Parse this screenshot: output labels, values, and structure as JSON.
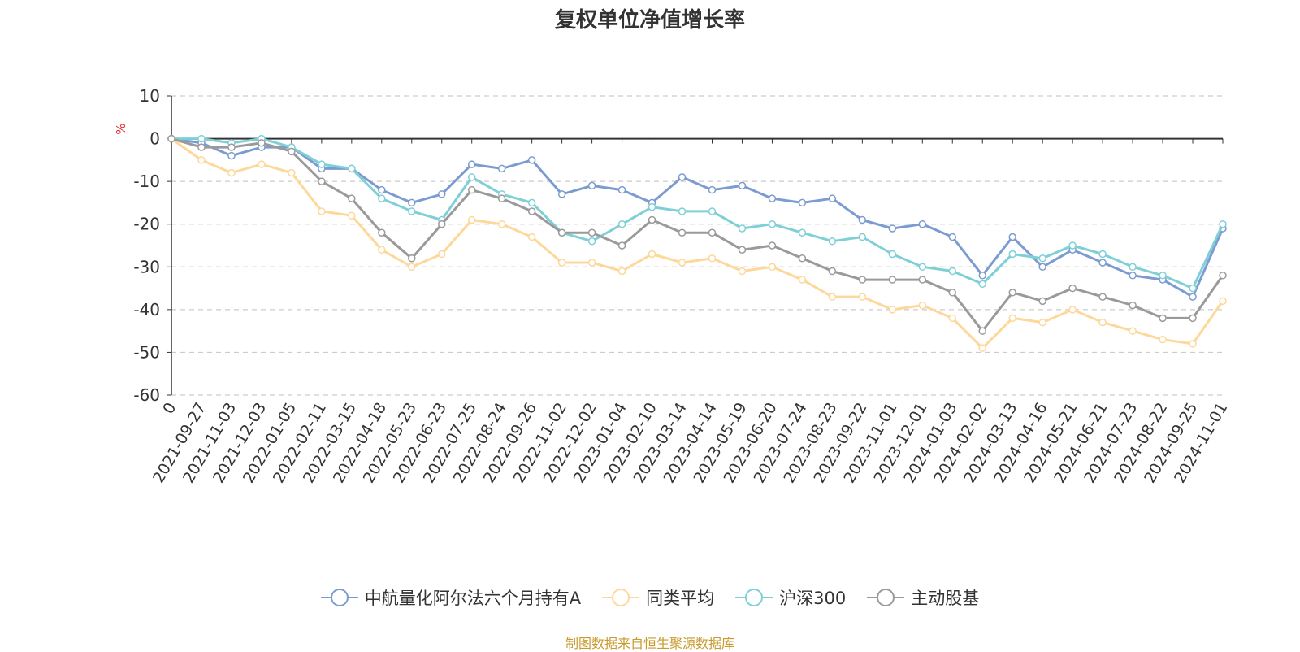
{
  "chart_data": {
    "type": "line",
    "title": "复权单位净值增长率",
    "ylabel": "%",
    "xlabel": "",
    "ylim": [
      -60,
      10
    ],
    "yticks": [
      10,
      0,
      -10,
      -20,
      -30,
      -40,
      -50,
      -60
    ],
    "categories": [
      "0",
      "2021-09-27",
      "2021-11-03",
      "2021-12-03",
      "2022-01-05",
      "2022-02-11",
      "2022-03-15",
      "2022-04-18",
      "2022-05-23",
      "2022-06-23",
      "2022-07-25",
      "2022-08-24",
      "2022-09-26",
      "2022-11-02",
      "2022-12-02",
      "2023-01-04",
      "2023-02-10",
      "2023-03-14",
      "2023-04-14",
      "2023-05-19",
      "2023-06-20",
      "2023-07-24",
      "2023-08-23",
      "2023-09-22",
      "2023-11-01",
      "2023-12-01",
      "2024-01-03",
      "2024-02-02",
      "2024-03-13",
      "2024-04-16",
      "2024-05-21",
      "2024-06-21",
      "2024-07-23",
      "2024-08-22",
      "2024-09-25",
      "2024-11-01"
    ],
    "series": [
      {
        "name": "中航量化阿尔法六个月持有A",
        "color": "#7b9bd1",
        "values": [
          0,
          -1,
          -4,
          -2,
          -2,
          -7,
          -7,
          -12,
          -15,
          -13,
          -6,
          -7,
          -5,
          -13,
          -11,
          -12,
          -15,
          -9,
          -12,
          -11,
          -14,
          -15,
          -14,
          -19,
          -21,
          -20,
          -23,
          -32,
          -23,
          -30,
          -26,
          -29,
          -32,
          -33,
          -37,
          -21
        ]
      },
      {
        "name": "同类平均",
        "color": "#fdd89a",
        "values": [
          0,
          -5,
          -8,
          -6,
          -8,
          -17,
          -18,
          -26,
          -30,
          -27,
          -19,
          -20,
          -23,
          -29,
          -29,
          -31,
          -27,
          -29,
          -28,
          -31,
          -30,
          -33,
          -37,
          -37,
          -40,
          -39,
          -42,
          -49,
          -42,
          -43,
          -40,
          -43,
          -45,
          -47,
          -48,
          -38
        ]
      },
      {
        "name": "沪深300",
        "color": "#7fd0d6",
        "values": [
          0,
          0,
          -1,
          0,
          -2,
          -6,
          -7,
          -14,
          -17,
          -19,
          -9,
          -13,
          -15,
          -22,
          -24,
          -20,
          -16,
          -17,
          -17,
          -21,
          -20,
          -22,
          -24,
          -23,
          -27,
          -30,
          -31,
          -34,
          -27,
          -28,
          -25,
          -27,
          -30,
          -32,
          -35,
          -20
        ]
      },
      {
        "name": "主动股基",
        "color": "#9a9a9a",
        "values": [
          0,
          -2,
          -2,
          -1,
          -3,
          -10,
          -14,
          -22,
          -28,
          -20,
          -12,
          -14,
          -17,
          -22,
          -22,
          -25,
          -19,
          -22,
          -22,
          -26,
          -25,
          -28,
          -31,
          -33,
          -33,
          -33,
          -36,
          -45,
          -36,
          -38,
          -35,
          -37,
          -39,
          -42,
          -42,
          -32
        ]
      }
    ]
  },
  "source_note": "制图数据来自恒生聚源数据库"
}
